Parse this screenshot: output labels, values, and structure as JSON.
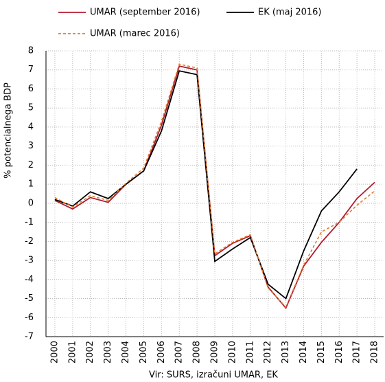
{
  "chart_data": {
    "type": "line",
    "x_label": "Vir: SURS, izračuni UMAR, EK",
    "y_label": "% potencialnega BDP",
    "categories": [
      "2000",
      "2001",
      "2002",
      "2003",
      "2004",
      "2005",
      "2006",
      "2007",
      "2008",
      "2009",
      "2010",
      "2011",
      "2012",
      "2013",
      "2014",
      "2015",
      "2016",
      "2017",
      "2018"
    ],
    "series": [
      {
        "name": "UMAR (september 2016)",
        "color": "#b01c2e",
        "dash": false,
        "values": [
          0.15,
          -0.3,
          0.3,
          0.05,
          1.0,
          1.7,
          4.1,
          7.2,
          7.0,
          -2.75,
          -2.1,
          -1.7,
          -4.4,
          -5.5,
          -3.3,
          -2.05,
          -1.0,
          0.25,
          1.1
        ]
      },
      {
        "name": "EK (maj 2016)",
        "color": "#000000",
        "dash": false,
        "values": [
          0.2,
          -0.15,
          0.6,
          0.25,
          1.0,
          1.7,
          3.8,
          6.95,
          6.75,
          -3.05,
          -2.4,
          -1.8,
          -4.25,
          -5.0,
          -2.5,
          -0.4,
          0.6,
          1.8,
          null
        ]
      },
      {
        "name": "UMAR (marec 2016)",
        "color": "#e07b30",
        "dash": true,
        "values": [
          0.3,
          -0.2,
          0.4,
          0.15,
          1.05,
          1.85,
          4.3,
          7.3,
          7.1,
          -2.65,
          -2.05,
          -1.65,
          -4.45,
          -5.45,
          -3.25,
          -1.5,
          -1.0,
          -0.1,
          0.65
        ]
      }
    ],
    "ylim": [
      -7,
      8
    ],
    "yticks": [
      -7,
      -6,
      -5,
      -4,
      -3,
      -2,
      -1,
      0,
      1,
      2,
      3,
      4,
      5,
      6,
      7,
      8
    ],
    "grid": true
  }
}
